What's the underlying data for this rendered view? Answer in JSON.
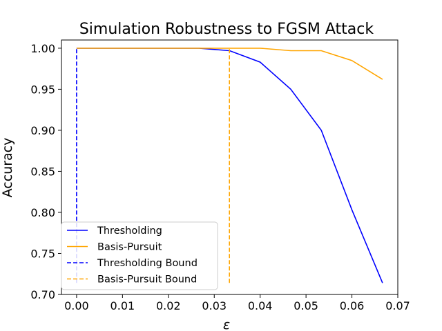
{
  "chart_data": {
    "type": "line",
    "title": "Simulation Robustness to FGSM Attack",
    "xlabel": "ε",
    "ylabel": "Accuracy",
    "xlim": [
      -0.0033,
      0.07
    ],
    "ylim": [
      0.7,
      1.01
    ],
    "xticks": [
      0.0,
      0.01,
      0.02,
      0.03,
      0.04,
      0.05,
      0.06,
      0.07
    ],
    "xtick_labels": [
      "0.00",
      "0.01",
      "0.02",
      "0.03",
      "0.04",
      "0.05",
      "0.06",
      "0.07"
    ],
    "yticks": [
      0.7,
      0.75,
      0.8,
      0.85,
      0.9,
      0.95,
      1.0
    ],
    "ytick_labels": [
      "0.70",
      "0.75",
      "0.80",
      "0.85",
      "0.90",
      "0.95",
      "1.00"
    ],
    "grid": false,
    "legend_position": "lower-left",
    "series": [
      {
        "name": "Thresholding",
        "color": "#0000ff",
        "style": "solid",
        "x": [
          0.0,
          0.00667,
          0.01333,
          0.02,
          0.02667,
          0.03333,
          0.04,
          0.04667,
          0.05333,
          0.06,
          0.06667
        ],
        "y": [
          1.0,
          1.0,
          1.0,
          1.0,
          1.0,
          0.997,
          0.983,
          0.95,
          0.9,
          0.803,
          0.714
        ]
      },
      {
        "name": "Basis-Pursuit",
        "color": "#ffa500",
        "style": "solid",
        "x": [
          0.0,
          0.00667,
          0.01333,
          0.02,
          0.02667,
          0.03333,
          0.04,
          0.04667,
          0.05333,
          0.06,
          0.06667
        ],
        "y": [
          1.0,
          1.0,
          1.0,
          1.0,
          1.0,
          1.0,
          1.0,
          0.997,
          0.997,
          0.985,
          0.962
        ]
      },
      {
        "name": "Thresholding Bound",
        "color": "#0000ff",
        "style": "dashed",
        "x": [
          0.0,
          0.0
        ],
        "y": [
          0.714,
          1.0
        ]
      },
      {
        "name": "Basis-Pursuit Bound",
        "color": "#ffa500",
        "style": "dashed",
        "x": [
          0.0333,
          0.0333
        ],
        "y": [
          0.714,
          1.0
        ]
      }
    ]
  }
}
